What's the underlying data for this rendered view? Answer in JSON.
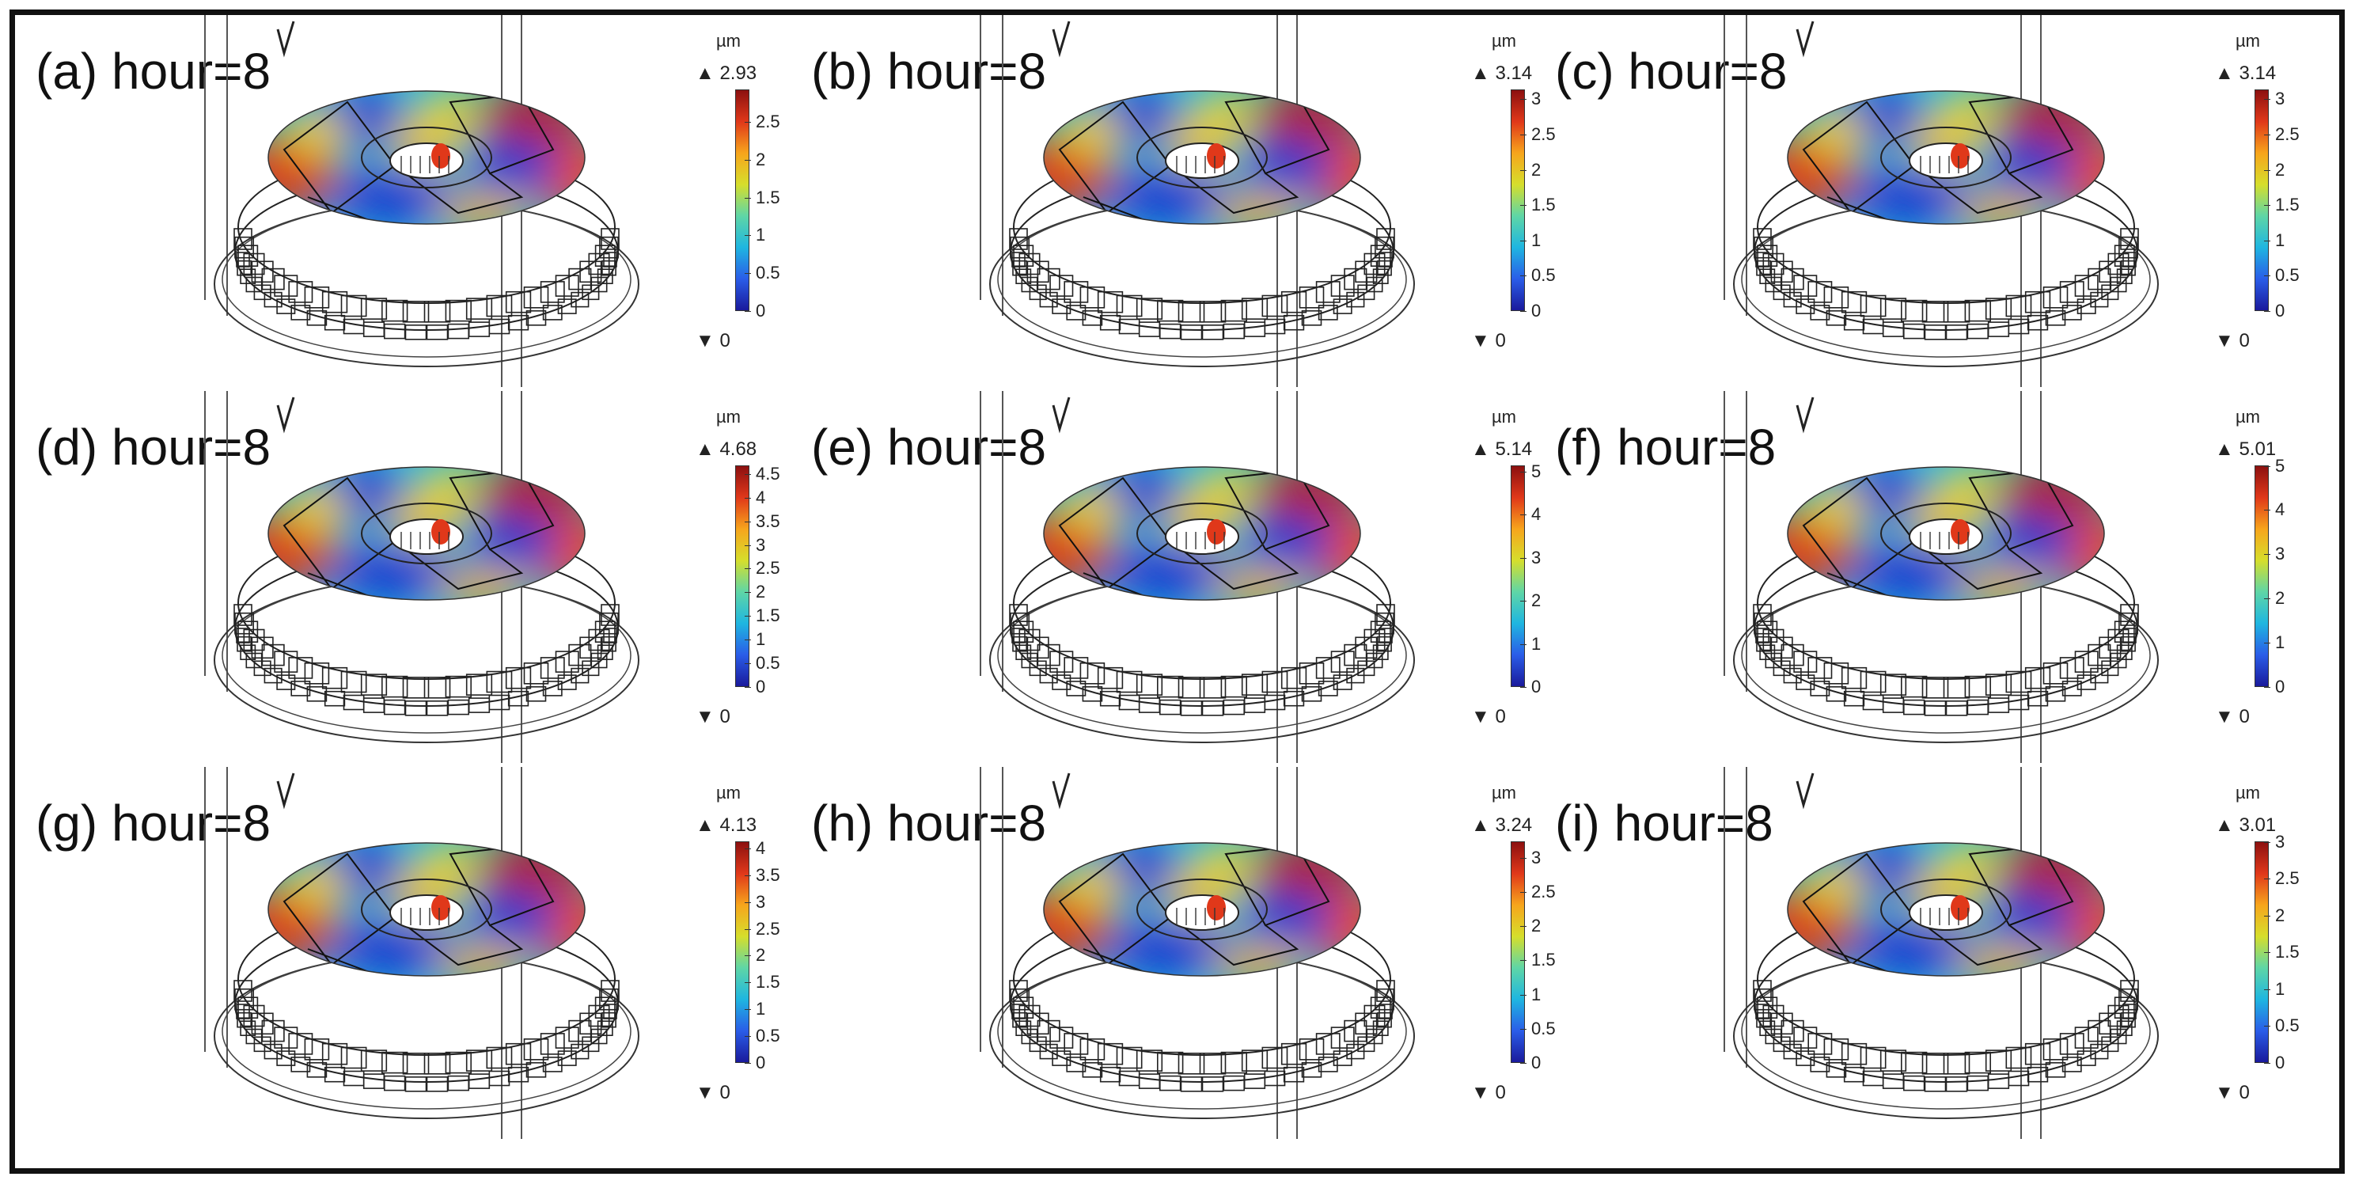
{
  "colors": {
    "border": "#111111",
    "colormap": [
      "#1a1a9c",
      "#2a5de8",
      "#1fb6e0",
      "#5fd6a6",
      "#d6de2c",
      "#f7a51c",
      "#e0381a",
      "#8c1010"
    ]
  },
  "icons": {
    "max_marker": "triangle-up-icon",
    "min_marker": "triangle-down-icon"
  },
  "panels": [
    {
      "label": "(a) hour=8",
      "unit": "µm",
      "max": "2.93",
      "min": "0",
      "max_value": 2.93,
      "ticks": [
        "0",
        "0.5",
        "1",
        "1.5",
        "2",
        "2.5"
      ],
      "tick_values": [
        0,
        0.5,
        1,
        1.5,
        2,
        2.5
      ]
    },
    {
      "label": "(b) hour=8",
      "unit": "µm",
      "max": "3.14",
      "min": "0",
      "max_value": 3.14,
      "ticks": [
        "0",
        "0.5",
        "1",
        "1.5",
        "2",
        "2.5",
        "3"
      ],
      "tick_values": [
        0,
        0.5,
        1,
        1.5,
        2,
        2.5,
        3
      ]
    },
    {
      "label": "(c) hour=8",
      "unit": "µm",
      "max": "3.14",
      "min": "0",
      "max_value": 3.14,
      "ticks": [
        "0",
        "0.5",
        "1",
        "1.5",
        "2",
        "2.5",
        "3"
      ],
      "tick_values": [
        0,
        0.5,
        1,
        1.5,
        2,
        2.5,
        3
      ]
    },
    {
      "label": "(d) hour=8",
      "unit": "µm",
      "max": "4.68",
      "min": "0",
      "max_value": 4.68,
      "ticks": [
        "0",
        "0.5",
        "1",
        "1.5",
        "2",
        "2.5",
        "3",
        "3.5",
        "4",
        "4.5"
      ],
      "tick_values": [
        0,
        0.5,
        1,
        1.5,
        2,
        2.5,
        3,
        3.5,
        4,
        4.5
      ]
    },
    {
      "label": "(e) hour=8",
      "unit": "µm",
      "max": "5.14",
      "min": "0",
      "max_value": 5.14,
      "ticks": [
        "0",
        "1",
        "2",
        "3",
        "4",
        "5"
      ],
      "tick_values": [
        0,
        1,
        2,
        3,
        4,
        5
      ]
    },
    {
      "label": "(f) hour=8",
      "unit": "µm",
      "max": "5.01",
      "min": "0",
      "max_value": 5.01,
      "ticks": [
        "0",
        "1",
        "2",
        "3",
        "4",
        "5"
      ],
      "tick_values": [
        0,
        1,
        2,
        3,
        4,
        5
      ]
    },
    {
      "label": "(g) hour=8",
      "unit": "µm",
      "max": "4.13",
      "min": "0",
      "max_value": 4.13,
      "ticks": [
        "0",
        "0.5",
        "1",
        "1.5",
        "2",
        "2.5",
        "3",
        "3.5",
        "4"
      ],
      "tick_values": [
        0,
        0.5,
        1,
        1.5,
        2,
        2.5,
        3,
        3.5,
        4
      ]
    },
    {
      "label": "(h) hour=8",
      "unit": "µm",
      "max": "3.24",
      "min": "0",
      "max_value": 3.24,
      "ticks": [
        "0",
        "0.5",
        "1",
        "1.5",
        "2",
        "2.5",
        "3"
      ],
      "tick_values": [
        0,
        0.5,
        1,
        1.5,
        2,
        2.5,
        3
      ]
    },
    {
      "label": "(i) hour=8",
      "unit": "µm",
      "max": "3.01",
      "min": "0",
      "max_value": 3.01,
      "ticks": [
        "0",
        "0.5",
        "1",
        "1.5",
        "2",
        "2.5",
        "3"
      ],
      "tick_values": [
        0,
        0.5,
        1,
        1.5,
        2,
        2.5,
        3
      ]
    }
  ]
}
